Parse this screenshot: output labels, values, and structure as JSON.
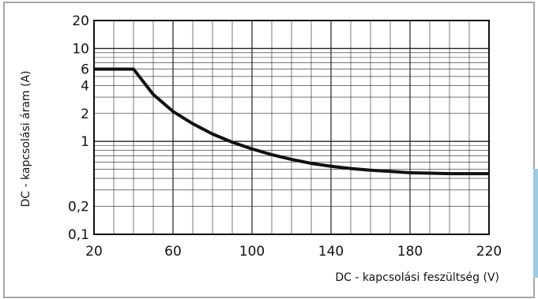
{
  "chart_data": {
    "type": "line",
    "xlabel": "DC - kapcsolási feszültség (V)",
    "ylabel": "DC - kapcsolási áram (A)",
    "xscale": "linear",
    "yscale": "log",
    "xlim": [
      20,
      220
    ],
    "ylim": [
      0.1,
      20
    ],
    "x_ticks": [
      "20",
      "60",
      "100",
      "140",
      "180",
      "220"
    ],
    "y_ticks": [
      "20",
      "10",
      "6",
      "4",
      "2",
      "1",
      "0,2",
      "0,1"
    ],
    "grid": true,
    "series": [
      {
        "x": [
          20,
          40,
          50,
          60,
          70,
          80,
          90,
          100,
          110,
          120,
          130,
          140,
          150,
          160,
          170,
          180,
          190,
          200,
          210,
          220
        ],
        "y": [
          6,
          6,
          3.2,
          2.1,
          1.55,
          1.2,
          0.98,
          0.83,
          0.72,
          0.64,
          0.58,
          0.54,
          0.51,
          0.49,
          0.475,
          0.46,
          0.455,
          0.45,
          0.45,
          0.45
        ]
      }
    ],
    "colors": {
      "line": "#111111",
      "grid": "#222222",
      "frame": "#a7a7a7",
      "accent": "#9ccbe6"
    }
  }
}
